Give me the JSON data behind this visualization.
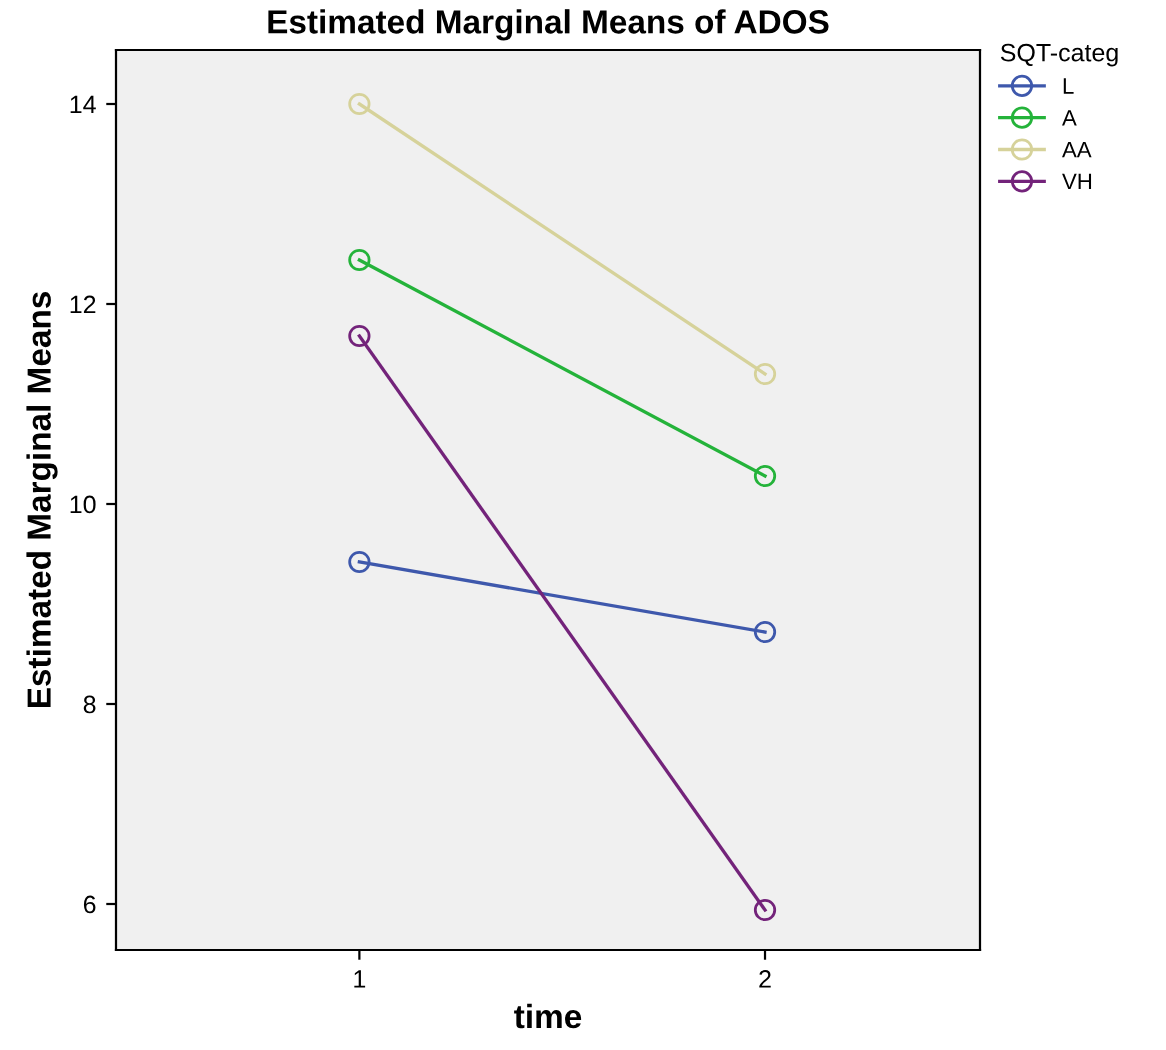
{
  "chart_data": {
    "type": "line",
    "title": "Estimated Marginal Means of ADOS",
    "xlabel": "time",
    "ylabel": "Estimated Marginal Means",
    "legend_title": "SQT-categ",
    "x": [
      1,
      2
    ],
    "series": [
      {
        "name": "L",
        "color": "#3e58ac",
        "values": [
          9.42,
          8.72
        ]
      },
      {
        "name": "A",
        "color": "#24b33a",
        "values": [
          12.44,
          10.28
        ]
      },
      {
        "name": "AA",
        "color": "#d6d29a",
        "values": [
          14.0,
          11.3
        ]
      },
      {
        "name": "VH",
        "color": "#73237a",
        "values": [
          11.68,
          5.94
        ]
      }
    ],
    "xlim": [
      0.4,
      2.53
    ],
    "xticks": [
      1,
      2
    ],
    "ylim": [
      5.54,
      14.54
    ],
    "yticks": [
      6,
      8,
      10,
      12,
      14
    ],
    "grid": false,
    "legend": "top right",
    "marker": "circle",
    "line_style": "solid"
  }
}
